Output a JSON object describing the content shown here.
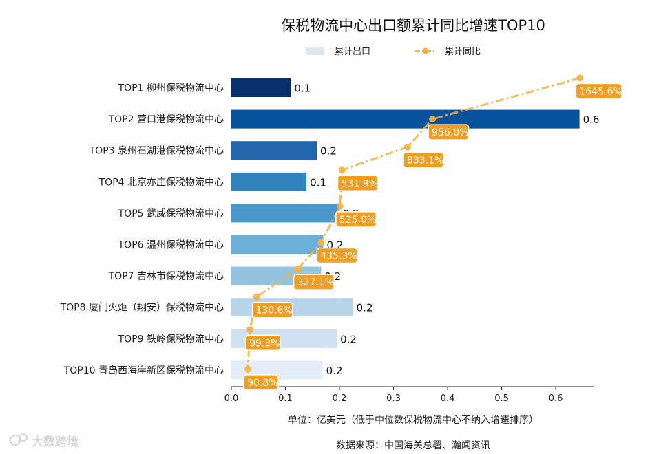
{
  "chart_data": {
    "type": "bar",
    "orientation": "horizontal",
    "title": "保税物流中心出口额累计同比增速TOP10",
    "categories": [
      "TOP1 柳州保税物流中心",
      "TOP2 营口港保税物流中心",
      "TOP3 泉州石湖港保税物流中心",
      "TOP4 北京亦庄保税物流中心",
      "TOP5 武威保税物流中心",
      "TOP6 温州保税物流中心",
      "TOP7 吉林市保税物流中心",
      "TOP8 厦门火炬（翔安）保税物流中心",
      "TOP9 铁岭保税物流中心",
      "TOP10 青岛西海岸新区保税物流中心"
    ],
    "series": [
      {
        "name": "累计出口",
        "type": "bar",
        "values": [
          0.11,
          0.644,
          0.158,
          0.139,
          0.2,
          0.17,
          0.166,
          0.225,
          0.195,
          0.169
        ],
        "value_labels": [
          "0.1",
          "0.6",
          "0.2",
          "0.1",
          "0.2",
          "0.2",
          "0.2",
          "0.2",
          "0.2",
          "0.2"
        ],
        "colors": [
          "#08306b",
          "#08519c",
          "#2166ac",
          "#3182bd",
          "#4a98c9",
          "#6baed6",
          "#94c4df",
          "#b9d5ea",
          "#cfe1f2",
          "#e3eef8"
        ]
      },
      {
        "name": "累计同比",
        "type": "line",
        "values": [
          1645.6,
          956.0,
          833.1,
          531.9,
          525.0,
          435.3,
          327.1,
          130.6,
          99.3,
          90.8
        ],
        "labels": [
          "1645.6%",
          "956.0%",
          "833.1%",
          "531.9%",
          "525.0%",
          "435.3%",
          "327.1%",
          "130.6%",
          "99.3%",
          "90.8%"
        ],
        "color": "#f5b041",
        "label_color": "#f39c1f"
      }
    ],
    "x_ticks": [
      "0.0",
      "0.1",
      "0.2",
      "0.3",
      "0.4",
      "0.5",
      "0.6"
    ],
    "xlim": [
      0,
      0.67
    ],
    "xlabel": "单位：亿美元（低于中位数保税物流中心不纳入增速排序）",
    "legend_position": "top-center",
    "grid": false
  },
  "footer": {
    "source": "数据来源：中国海关总署、瀚闻资讯",
    "watermark": "大数跨境"
  }
}
